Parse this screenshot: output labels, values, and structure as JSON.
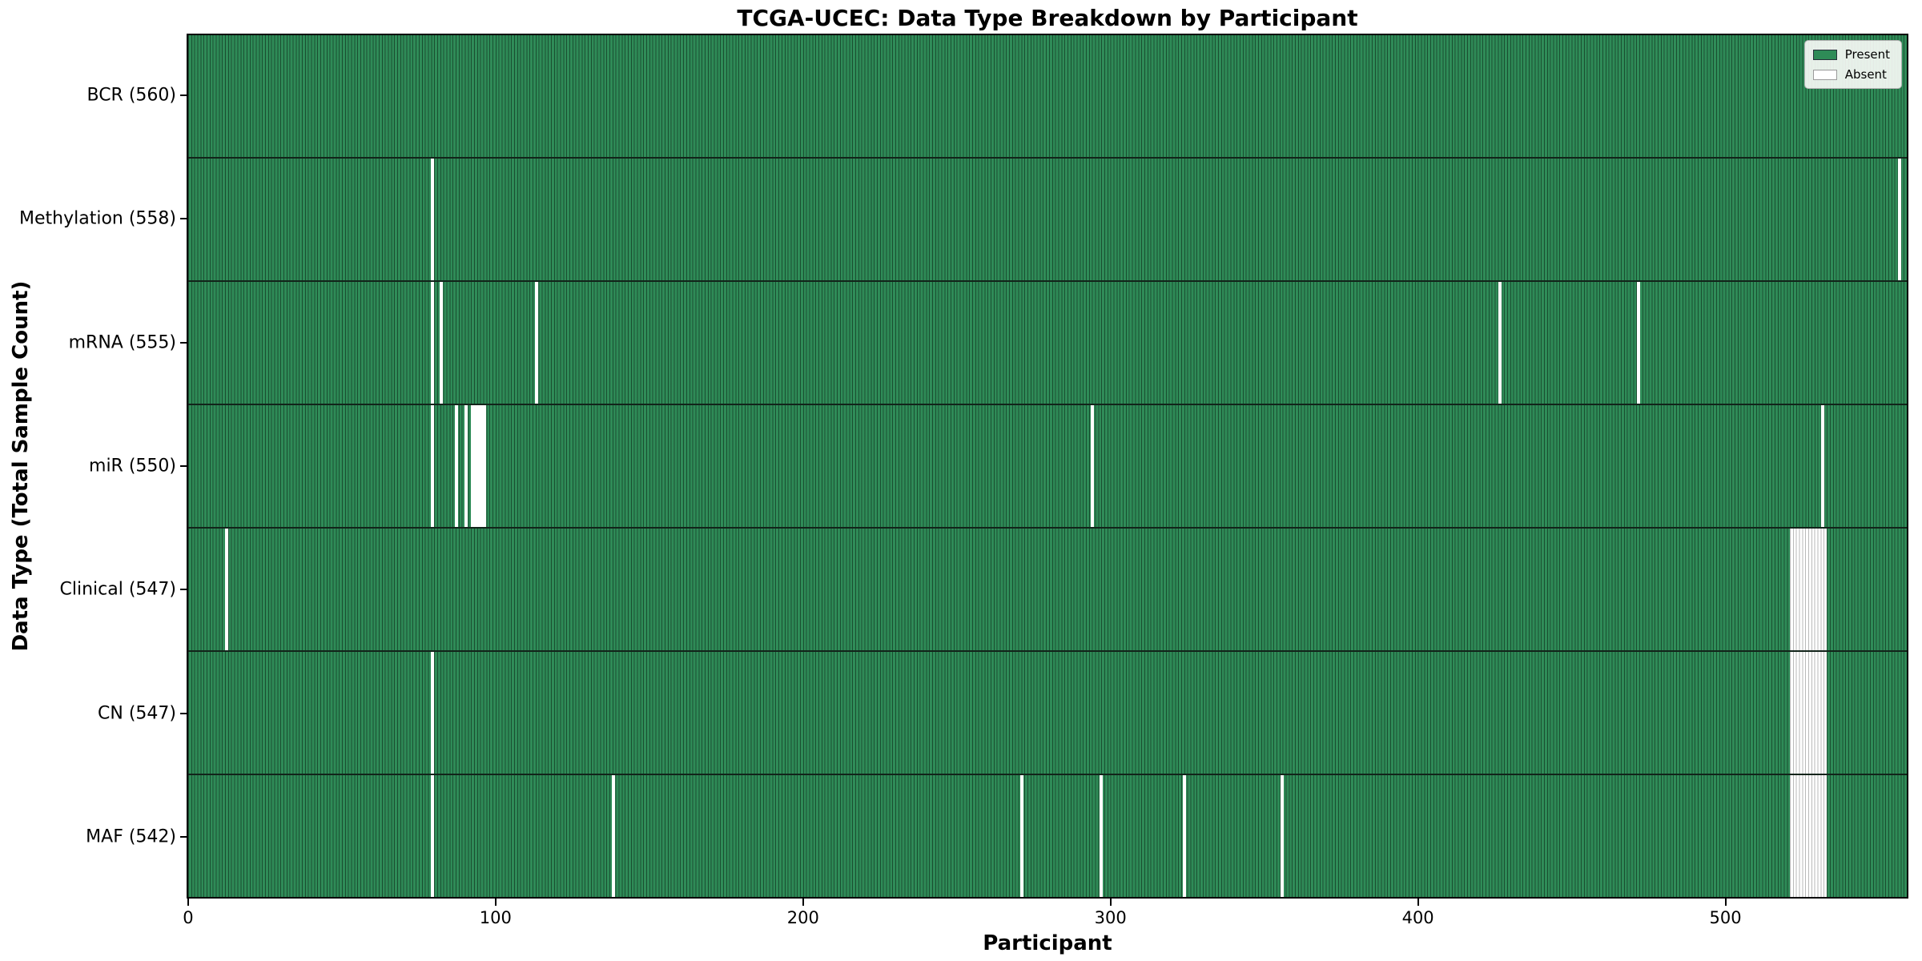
{
  "title": "TCGA-UCEC: Data Type Breakdown by Participant",
  "xlabel": "Participant",
  "ylabel": "Data Type (Total Sample Count)",
  "legend": {
    "position": "upper-right",
    "present_label": "Present",
    "absent_label": "Absent"
  },
  "colors": {
    "present": "#2e8b57",
    "absent": "#ffffff",
    "bar_edge": "#14321f",
    "plot_border": "#000000"
  },
  "chart_data": {
    "type": "heatmap",
    "title": "TCGA-UCEC: Data Type Breakdown by Participant",
    "xlabel": "Participant",
    "ylabel": "Data Type (Total Sample Count)",
    "total_participants": 560,
    "x_ticks": [
      0,
      100,
      200,
      300,
      400,
      500
    ],
    "legend_entries": [
      "Present",
      "Absent"
    ],
    "grid": false,
    "rows": [
      {
        "key": "bcr",
        "label": "BCR (560)",
        "data_type": "BCR",
        "present_count": 560,
        "absent_participants": [],
        "absent_ranges": []
      },
      {
        "key": "methylation",
        "label": "Methylation (558)",
        "data_type": "Methylation",
        "present_count": 558,
        "absent_participants": [
          79,
          557
        ],
        "absent_ranges": []
      },
      {
        "key": "mrna",
        "label": "mRNA (555)",
        "data_type": "mRNA",
        "present_count": 555,
        "absent_participants": [
          79,
          82,
          113,
          427,
          472
        ],
        "absent_ranges": []
      },
      {
        "key": "mir",
        "label": "miR (550)",
        "data_type": "miR",
        "present_count": 550,
        "absent_participants": [
          79,
          87,
          90,
          92,
          93,
          94,
          95,
          96,
          294,
          532
        ],
        "absent_ranges": []
      },
      {
        "key": "clinical",
        "label": "Clinical (547)",
        "data_type": "Clinical",
        "present_count": 547,
        "absent_participants": [
          12
        ],
        "absent_ranges": [
          [
            522,
            533
          ]
        ]
      },
      {
        "key": "cn",
        "label": "CN (547)",
        "data_type": "CN",
        "present_count": 547,
        "absent_participants": [
          79
        ],
        "absent_ranges": [
          [
            522,
            533
          ]
        ]
      },
      {
        "key": "maf",
        "label": "MAF (542)",
        "data_type": "MAF",
        "present_count": 542,
        "absent_participants": [
          79,
          138,
          271,
          297,
          324,
          356
        ],
        "absent_ranges": [
          [
            522,
            533
          ]
        ]
      }
    ]
  }
}
